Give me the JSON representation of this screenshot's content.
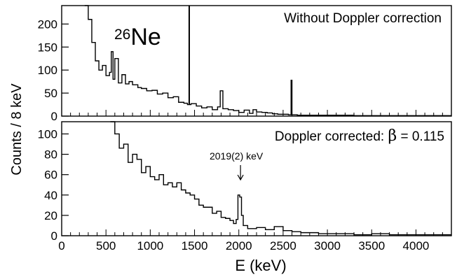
{
  "chart_data": [
    {
      "type": "histogram",
      "panel": "top",
      "annotation": "Without Doppler correction",
      "nucleus_mass": "26",
      "nucleus_symbol": "Ne",
      "xlim": [
        0,
        4400
      ],
      "ylim": [
        0,
        240
      ],
      "yticks": [
        0,
        50,
        100,
        150,
        200
      ],
      "grid": false,
      "vertical_marker_x": 1440,
      "bin_width_keV": 8,
      "series": [
        {
          "x": [
            260,
            300,
            340,
            380,
            420,
            460,
            500,
            540,
            560,
            580,
            600,
            640,
            680,
            720,
            760,
            800,
            860,
            900,
            960,
            1020,
            1080,
            1140,
            1200,
            1260,
            1320,
            1380,
            1420,
            1460,
            1520,
            1580,
            1640,
            1700,
            1760,
            1790,
            1820,
            1880,
            1940,
            2000,
            2060,
            2120,
            2160,
            2200,
            2260,
            2320,
            2380,
            2440,
            2500,
            2560,
            2590,
            2600,
            2660,
            2760,
            2900,
            3100,
            3300,
            3500,
            3700,
            3900,
            4100,
            4300,
            4400
          ],
          "y": [
            240,
            210,
            160,
            120,
            100,
            110,
            88,
            95,
            140,
            80,
            125,
            72,
            90,
            70,
            75,
            68,
            62,
            60,
            55,
            56,
            48,
            50,
            40,
            42,
            30,
            28,
            25,
            27,
            22,
            18,
            20,
            14,
            20,
            55,
            16,
            14,
            12,
            8,
            13,
            6,
            14,
            9,
            8,
            7,
            5,
            4,
            4,
            3,
            78,
            3,
            2,
            2,
            2,
            2,
            1,
            1,
            1,
            1,
            1,
            1,
            1
          ]
        }
      ]
    },
    {
      "type": "histogram",
      "panel": "bottom",
      "annotation_label": "Doppler corrected:",
      "annotation_beta_symbol": "β",
      "annotation_beta_value": "= 0.115",
      "peak_label": "2019(2) keV",
      "peak_x": 2019,
      "xlim": [
        0,
        4400
      ],
      "ylim": [
        0,
        112
      ],
      "yticks": [
        0,
        20,
        40,
        60,
        80,
        100
      ],
      "xticks": [
        0,
        500,
        1000,
        1500,
        2000,
        2500,
        3000,
        3500,
        4000
      ],
      "xlabel": "E (keV)",
      "grid": false,
      "bin_width_keV": 8,
      "series": [
        {
          "x": [
            550,
            600,
            650,
            700,
            750,
            800,
            850,
            900,
            950,
            1000,
            1050,
            1100,
            1150,
            1200,
            1250,
            1300,
            1350,
            1400,
            1450,
            1500,
            1550,
            1600,
            1650,
            1700,
            1750,
            1800,
            1850,
            1900,
            1940,
            1970,
            1990,
            2010,
            2030,
            2050,
            2100,
            2200,
            2300,
            2400,
            2500,
            2600,
            2700,
            2800,
            2900,
            3100,
            3300,
            3500,
            3700,
            3900,
            4100,
            4300,
            4400
          ],
          "y": [
            112,
            100,
            86,
            90,
            72,
            80,
            75,
            62,
            68,
            58,
            55,
            60,
            50,
            52,
            48,
            52,
            45,
            42,
            40,
            36,
            30,
            28,
            28,
            22,
            24,
            18,
            17,
            15,
            12,
            16,
            40,
            38,
            20,
            10,
            7,
            8,
            6,
            9,
            5,
            4,
            3,
            3,
            2,
            2,
            1,
            2,
            1,
            1,
            1,
            1,
            1
          ]
        }
      ]
    }
  ],
  "shared": {
    "ylabel": "Counts / 8 keV"
  }
}
